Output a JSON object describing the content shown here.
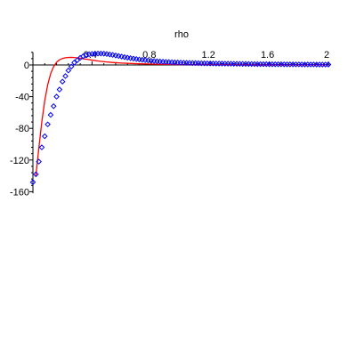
{
  "chart_data": {
    "type": "line",
    "title": "",
    "xlabel": "rho",
    "ylabel": "",
    "xlim": [
      0,
      2
    ],
    "ylim": [
      -162,
      16
    ],
    "x_ticks": [
      {
        "value": 0.4,
        "label": "0.4"
      },
      {
        "value": 0.8,
        "label": "0.8"
      },
      {
        "value": 1.2,
        "label": "1.2"
      },
      {
        "value": 1.6,
        "label": "1.6"
      },
      {
        "value": 2,
        "label": "2"
      }
    ],
    "y_ticks": [
      {
        "value": 0,
        "label": "0"
      },
      {
        "value": -40,
        "label": "-40"
      },
      {
        "value": -80,
        "label": "-80"
      },
      {
        "value": -120,
        "label": "-120"
      },
      {
        "value": -160,
        "label": "-160"
      }
    ],
    "series": [
      {
        "style": "line",
        "color": "#ff0000",
        "x": [
          0.02,
          0.04,
          0.06,
          0.08,
          0.1,
          0.12,
          0.14,
          0.16,
          0.18,
          0.2,
          0.22,
          0.24,
          0.26,
          0.28,
          0.3,
          0.32,
          0.34,
          0.36,
          0.38,
          0.4,
          0.45,
          0.5,
          0.55,
          0.6,
          0.7,
          0.8,
          0.9,
          1.0,
          1.2,
          1.4,
          1.6,
          1.8,
          2.0
        ],
        "y": [
          -140,
          -105,
          -72,
          -45,
          -25,
          -11,
          -2,
          3.5,
          6.5,
          8.2,
          9.1,
          9.5,
          9.6,
          9.4,
          9.0,
          8.5,
          7.9,
          7.3,
          6.7,
          6.1,
          4.8,
          3.8,
          3.0,
          2.4,
          1.6,
          1.1,
          0.8,
          0.6,
          0.4,
          0.3,
          0.2,
          0.15,
          0.1
        ]
      },
      {
        "style": "markers",
        "marker": "diamond",
        "color": "#0000ff",
        "x": [
          0.0,
          0.02,
          0.04,
          0.06,
          0.08,
          0.1,
          0.12,
          0.14,
          0.16,
          0.18,
          0.2,
          0.22,
          0.24,
          0.26,
          0.28,
          0.3,
          0.32,
          0.34,
          0.36,
          0.38,
          0.4,
          0.42,
          0.44,
          0.46,
          0.48,
          0.5,
          0.52,
          0.54,
          0.56,
          0.58,
          0.6,
          0.62,
          0.64,
          0.66,
          0.68,
          0.7,
          0.72,
          0.74,
          0.76,
          0.78,
          0.8,
          0.82,
          0.84,
          0.86,
          0.88,
          0.9,
          0.92,
          0.94,
          0.96,
          0.98,
          1.0,
          1.02,
          1.04,
          1.06,
          1.08,
          1.1,
          1.12,
          1.14,
          1.16,
          1.18,
          1.2,
          1.22,
          1.24,
          1.26,
          1.28,
          1.3,
          1.32,
          1.34,
          1.36,
          1.38,
          1.4,
          1.42,
          1.44,
          1.46,
          1.48,
          1.5,
          1.52,
          1.54,
          1.56,
          1.58,
          1.6,
          1.62,
          1.64,
          1.66,
          1.68,
          1.7,
          1.72,
          1.74,
          1.76,
          1.78,
          1.8,
          1.82,
          1.84,
          1.86,
          1.88,
          1.9,
          1.92,
          1.94,
          1.96,
          1.98,
          2.0
        ],
        "y": [
          -148,
          -138,
          -122,
          -104,
          -90,
          -75,
          -63,
          -52,
          -40,
          -31,
          -21,
          -14,
          -7,
          -2,
          3,
          6,
          9,
          11,
          12.5,
          13.5,
          14,
          14.3,
          14.4,
          14.4,
          14.2,
          13.8,
          13.3,
          12.7,
          12.0,
          11.3,
          10.6,
          9.9,
          9.2,
          8.6,
          8.0,
          7.5,
          7.0,
          6.5,
          6.1,
          5.7,
          5.3,
          5.0,
          4.7,
          4.4,
          4.1,
          3.9,
          3.7,
          3.5,
          3.3,
          3.1,
          3.0,
          2.8,
          2.7,
          2.6,
          2.5,
          2.4,
          2.3,
          2.2,
          2.1,
          2.0,
          1.9,
          1.85,
          1.8,
          1.75,
          1.7,
          1.65,
          1.6,
          1.55,
          1.5,
          1.45,
          1.4,
          1.35,
          1.3,
          1.25,
          1.2,
          1.15,
          1.1,
          1.05,
          1.0,
          1.0,
          0.95,
          0.9,
          0.9,
          0.85,
          0.85,
          0.8,
          0.8,
          0.75,
          0.75,
          0.7,
          0.7,
          0.65,
          0.65,
          0.6,
          0.6,
          0.6,
          0.55,
          0.55,
          0.5,
          0.5,
          0.5
        ]
      }
    ],
    "grid": false,
    "legend": "none"
  }
}
